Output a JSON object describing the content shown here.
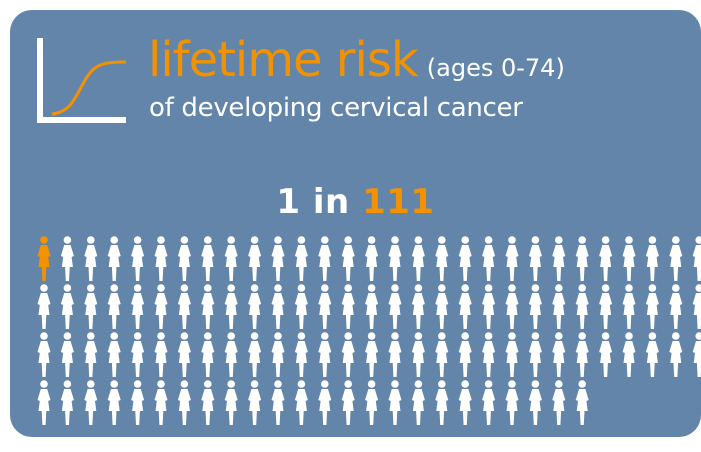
{
  "headline": {
    "big_text": "lifetime risk",
    "ages_text": "(ages 0-74)",
    "subtitle": "of developing cervical cancer"
  },
  "ratio": {
    "prefix": "1 in",
    "denominator": "111"
  },
  "pictogram": {
    "total": 111,
    "highlighted": 1,
    "highlight_color": "#f29200",
    "base_color": "#ffffff"
  },
  "colors": {
    "background": "#6385aa",
    "accent": "#f29200",
    "text": "#ffffff"
  }
}
